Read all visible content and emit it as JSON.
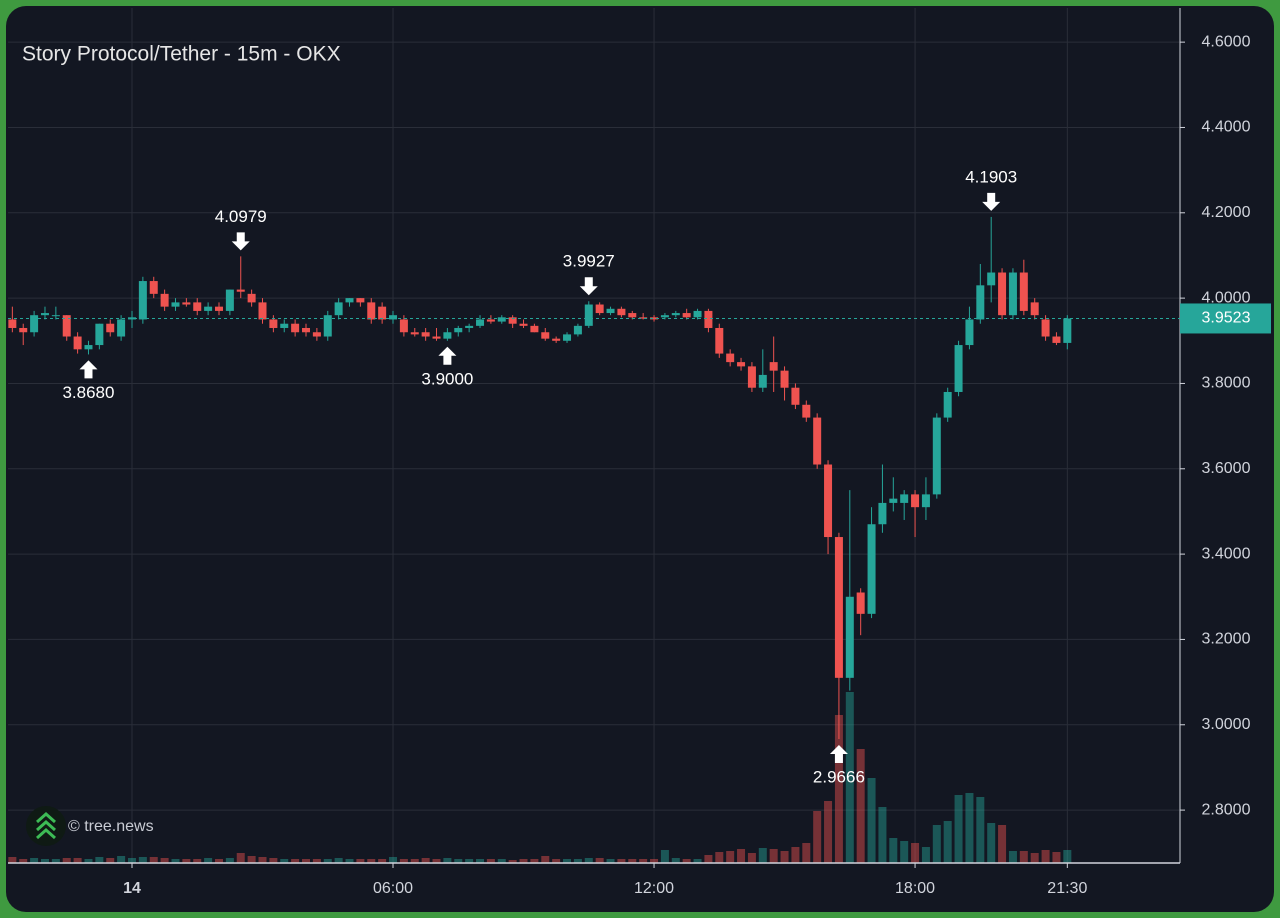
{
  "chart_data": {
    "type": "candlestick",
    "title": "Story Protocol/Tether - 15m - OKX",
    "watermark": "© tree.news",
    "up_color": "#26a69a",
    "down_color": "#ef5350",
    "grid": true,
    "x": [
      -2.75,
      -2.5,
      -2.25,
      -2,
      -1.75,
      -1.5,
      -1.25,
      -1,
      -0.75,
      -0.5,
      -0.25,
      0,
      0.25,
      0.5,
      0.75,
      1,
      1.25,
      1.5,
      1.75,
      2,
      2.25,
      2.5,
      2.75,
      3,
      3.25,
      3.5,
      3.75,
      4,
      4.25,
      4.5,
      4.75,
      5,
      5.25,
      5.5,
      5.75,
      6,
      6.25,
      6.5,
      6.75,
      7,
      7.25,
      7.5,
      7.75,
      8,
      8.25,
      8.5,
      8.75,
      9,
      9.25,
      9.5,
      9.75,
      10,
      10.25,
      10.5,
      10.75,
      11,
      11.25,
      11.5,
      11.75,
      12,
      12.25,
      12.5,
      12.75,
      13,
      13.25,
      13.5,
      13.75,
      14,
      14.25,
      14.5,
      14.75,
      15,
      15.25,
      15.5,
      15.75,
      16,
      16.25,
      16.5,
      16.75,
      17,
      17.25,
      17.5,
      17.75,
      18,
      18.25,
      18.5,
      18.75,
      19,
      19.25,
      19.5,
      19.75,
      20,
      20.25,
      20.5,
      20.75,
      21,
      21.25,
      21.5
    ],
    "open": [
      3.95,
      3.93,
      3.92,
      3.96,
      3.96,
      3.96,
      3.91,
      3.88,
      3.89,
      3.94,
      3.91,
      3.95,
      3.95,
      4.04,
      4.01,
      3.98,
      3.99,
      3.99,
      3.97,
      3.98,
      3.97,
      4.02,
      4.01,
      3.99,
      3.95,
      3.93,
      3.94,
      3.93,
      3.92,
      3.91,
      3.96,
      3.99,
      4.0,
      3.99,
      3.98,
      3.95,
      3.95,
      3.92,
      3.92,
      3.91,
      3.905,
      3.92,
      3.93,
      3.935,
      3.95,
      3.945,
      3.955,
      3.94,
      3.935,
      3.92,
      3.905,
      3.9,
      3.915,
      3.935,
      3.985,
      3.965,
      3.975,
      3.965,
      3.955,
      3.955,
      3.955,
      3.96,
      3.965,
      3.955,
      3.97,
      3.93,
      3.87,
      3.85,
      3.84,
      3.79,
      3.85,
      3.83,
      3.79,
      3.75,
      3.72,
      3.61,
      3.44,
      3.11,
      3.31,
      3.26,
      3.47,
      3.52,
      3.52,
      3.54,
      3.51,
      3.54,
      3.72,
      3.78,
      3.89,
      3.95,
      4.03,
      4.06,
      3.96,
      4.06,
      3.99,
      3.95,
      3.91,
      3.895
    ],
    "high": [
      3.98,
      3.94,
      3.97,
      3.98,
      3.98,
      3.96,
      3.92,
      3.9,
      3.94,
      3.95,
      3.96,
      3.97,
      4.05,
      4.05,
      4.02,
      4.0,
      4.0,
      4.0,
      3.99,
      3.99,
      4.02,
      4.0979,
      4.02,
      4.0,
      3.96,
      3.95,
      3.95,
      3.94,
      3.93,
      3.97,
      4.0,
      4.0,
      4.0,
      4.0,
      3.99,
      3.97,
      3.96,
      3.93,
      3.93,
      3.93,
      3.93,
      3.935,
      3.94,
      3.96,
      3.96,
      3.96,
      3.96,
      3.95,
      3.94,
      3.93,
      3.91,
      3.92,
      3.94,
      3.9927,
      3.99,
      3.98,
      3.98,
      3.97,
      3.965,
      3.96,
      3.965,
      3.97,
      3.975,
      3.975,
      3.975,
      3.94,
      3.88,
      3.86,
      3.85,
      3.88,
      3.91,
      3.84,
      3.8,
      3.76,
      3.73,
      3.62,
      3.45,
      3.55,
      3.32,
      3.51,
      3.61,
      3.58,
      3.55,
      3.55,
      3.58,
      3.73,
      3.79,
      3.9,
      3.98,
      4.08,
      4.1903,
      4.07,
      4.07,
      4.09,
      4.0,
      3.96,
      3.92,
      3.96
    ],
    "low": [
      3.92,
      3.89,
      3.91,
      3.95,
      3.95,
      3.9,
      3.87,
      3.868,
      3.88,
      3.91,
      3.9,
      3.93,
      3.94,
      4.0,
      3.97,
      3.97,
      3.98,
      3.96,
      3.96,
      3.96,
      3.96,
      4.0,
      3.98,
      3.94,
      3.92,
      3.92,
      3.91,
      3.91,
      3.9,
      3.9,
      3.95,
      3.98,
      3.98,
      3.94,
      3.94,
      3.94,
      3.91,
      3.91,
      3.9,
      3.9,
      3.9,
      3.91,
      3.92,
      3.93,
      3.94,
      3.94,
      3.93,
      3.93,
      3.92,
      3.9,
      3.895,
      3.895,
      3.91,
      3.93,
      3.96,
      3.96,
      3.955,
      3.95,
      3.95,
      3.945,
      3.95,
      3.955,
      3.95,
      3.95,
      3.92,
      3.86,
      3.84,
      3.83,
      3.78,
      3.78,
      3.78,
      3.76,
      3.74,
      3.71,
      3.6,
      3.4,
      2.9666,
      3.08,
      3.21,
      3.25,
      3.45,
      3.5,
      3.48,
      3.44,
      3.48,
      3.53,
      3.71,
      3.77,
      3.88,
      3.94,
      3.99,
      3.95,
      3.95,
      3.96,
      3.95,
      3.9,
      3.89,
      3.88
    ],
    "close": [
      3.93,
      3.92,
      3.96,
      3.965,
      3.96,
      3.91,
      3.88,
      3.89,
      3.94,
      3.92,
      3.95,
      3.955,
      4.04,
      4.01,
      3.98,
      3.99,
      3.985,
      3.97,
      3.98,
      3.97,
      4.02,
      4.015,
      3.99,
      3.95,
      3.93,
      3.94,
      3.92,
      3.92,
      3.91,
      3.96,
      3.99,
      4.0,
      3.99,
      3.95,
      3.95,
      3.96,
      3.92,
      3.915,
      3.91,
      3.905,
      3.92,
      3.93,
      3.935,
      3.95,
      3.945,
      3.955,
      3.94,
      3.935,
      3.92,
      3.905,
      3.9,
      3.915,
      3.935,
      3.985,
      3.965,
      3.975,
      3.96,
      3.955,
      3.952,
      3.95,
      3.96,
      3.965,
      3.955,
      3.97,
      3.93,
      3.87,
      3.85,
      3.84,
      3.79,
      3.82,
      3.83,
      3.79,
      3.75,
      3.72,
      3.61,
      3.44,
      3.11,
      3.3,
      3.26,
      3.47,
      3.52,
      3.53,
      3.54,
      3.51,
      3.54,
      3.72,
      3.78,
      3.89,
      3.95,
      4.03,
      4.06,
      3.96,
      4.06,
      3.97,
      3.96,
      3.91,
      3.895,
      3.9523
    ],
    "volume": [
      6,
      4,
      5,
      4,
      4,
      5,
      5,
      4,
      6,
      5,
      7,
      5,
      6,
      6,
      5,
      4,
      4,
      4,
      5,
      4,
      5,
      10,
      7,
      6,
      5,
      4,
      4,
      4,
      4,
      4,
      5,
      4,
      4,
      4,
      4,
      6,
      4,
      4,
      5,
      4,
      5,
      4,
      4,
      4,
      4,
      4,
      3,
      4,
      4,
      7,
      4,
      4,
      4,
      5,
      5,
      4,
      4,
      4,
      4,
      4,
      13,
      5,
      4,
      4,
      8,
      11,
      12,
      14,
      10,
      15,
      14,
      12,
      16,
      20,
      52,
      62,
      148,
      171,
      114,
      85,
      56,
      25,
      22,
      20,
      16,
      38,
      42,
      68,
      70,
      66,
      40,
      38,
      12,
      12,
      10,
      13,
      11,
      13
    ],
    "ylim": [
      2.676,
      4.68
    ],
    "yticks": [
      {
        "value": 2.8,
        "label": "2.8000"
      },
      {
        "value": 3.0,
        "label": "3.0000"
      },
      {
        "value": 3.2,
        "label": "3.2000"
      },
      {
        "value": 3.4,
        "label": "3.4000"
      },
      {
        "value": 3.6,
        "label": "3.6000"
      },
      {
        "value": 3.8,
        "label": "3.8000"
      },
      {
        "value": 4.0,
        "label": "4.0000"
      },
      {
        "value": 4.2,
        "label": "4.2000"
      },
      {
        "value": 4.4,
        "label": "4.4000"
      },
      {
        "value": 4.6,
        "label": "4.6000"
      }
    ],
    "xlim": [
      -2.85,
      24.09
    ],
    "xticks": [
      {
        "value": 0,
        "label": "14"
      },
      {
        "value": 6,
        "label": "06:00"
      },
      {
        "value": 12,
        "label": "12:00"
      },
      {
        "value": 18,
        "label": "18:00"
      },
      {
        "value": 21.5,
        "label": "21:30"
      }
    ],
    "annotations": [
      {
        "x": -1,
        "value": 3.868,
        "label": "3.8680",
        "position": "below"
      },
      {
        "x": 2.5,
        "value": 4.0979,
        "label": "4.0979",
        "position": "above"
      },
      {
        "x": 7.25,
        "value": 3.9,
        "label": "3.9000",
        "position": "below"
      },
      {
        "x": 10.5,
        "value": 3.9927,
        "label": "3.9927",
        "position": "above"
      },
      {
        "x": 16.25,
        "value": 2.9666,
        "label": "2.9666",
        "position": "below"
      },
      {
        "x": 19.75,
        "value": 4.1903,
        "label": "4.1903",
        "position": "above"
      }
    ],
    "last_price": {
      "value": 3.9523,
      "label": "3.9523"
    }
  }
}
